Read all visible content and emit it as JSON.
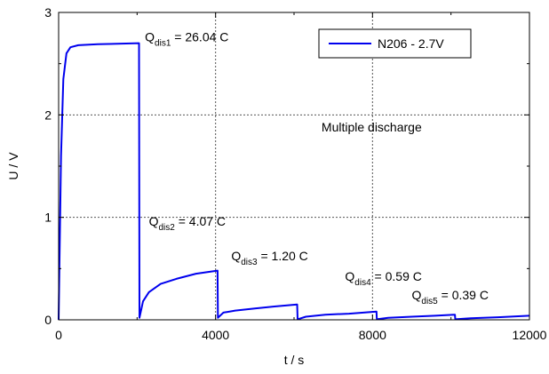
{
  "chart_data": {
    "type": "line",
    "title": "",
    "xlabel": "t / s",
    "ylabel": "U / V",
    "xlim": [
      0,
      12000
    ],
    "ylim": [
      0,
      3
    ],
    "x_ticks": [
      0,
      4000,
      8000,
      12000
    ],
    "y_ticks": [
      0,
      1,
      2,
      3
    ],
    "grid": "dashed at major ticks",
    "legend_position": "top-right",
    "series": [
      {
        "name": "N206 - 2.7V",
        "color": "#0000ee",
        "points": [
          [
            0,
            0
          ],
          [
            60,
            1.6
          ],
          [
            120,
            2.35
          ],
          [
            200,
            2.6
          ],
          [
            300,
            2.66
          ],
          [
            500,
            2.68
          ],
          [
            1000,
            2.69
          ],
          [
            2050,
            2.7
          ],
          [
            2060,
            0.02
          ],
          [
            2150,
            0.18
          ],
          [
            2300,
            0.27
          ],
          [
            2600,
            0.35
          ],
          [
            3000,
            0.4
          ],
          [
            3500,
            0.45
          ],
          [
            4050,
            0.48
          ],
          [
            4060,
            0.02
          ],
          [
            4200,
            0.07
          ],
          [
            4500,
            0.09
          ],
          [
            5000,
            0.11
          ],
          [
            5500,
            0.13
          ],
          [
            6080,
            0.15
          ],
          [
            6090,
            0.005
          ],
          [
            6300,
            0.03
          ],
          [
            6800,
            0.05
          ],
          [
            7400,
            0.06
          ],
          [
            8100,
            0.08
          ],
          [
            8110,
            0.005
          ],
          [
            8400,
            0.02
          ],
          [
            9000,
            0.03
          ],
          [
            9600,
            0.04
          ],
          [
            10100,
            0.05
          ],
          [
            10110,
            0.005
          ],
          [
            10500,
            0.015
          ],
          [
            11200,
            0.025
          ],
          [
            12000,
            0.04
          ]
        ]
      }
    ],
    "annotations": [
      {
        "q_sub": "dis1",
        "value": "= 26.04 C",
        "x": 2200,
        "y": 2.72
      },
      {
        "q_sub": "dis2",
        "value": "= 4.07 C",
        "x": 2300,
        "y": 0.92
      },
      {
        "q_sub": "dis3",
        "value": "= 1.20 C",
        "x": 4400,
        "y": 0.58
      },
      {
        "q_sub": "dis4",
        "value": "= 0.59 C",
        "x": 7300,
        "y": 0.38
      },
      {
        "q_sub": "dis5",
        "value": "= 0.39 C",
        "x": 9000,
        "y": 0.2
      },
      {
        "text": "Multiple discharge",
        "x": 6700,
        "y": 1.84
      }
    ]
  }
}
